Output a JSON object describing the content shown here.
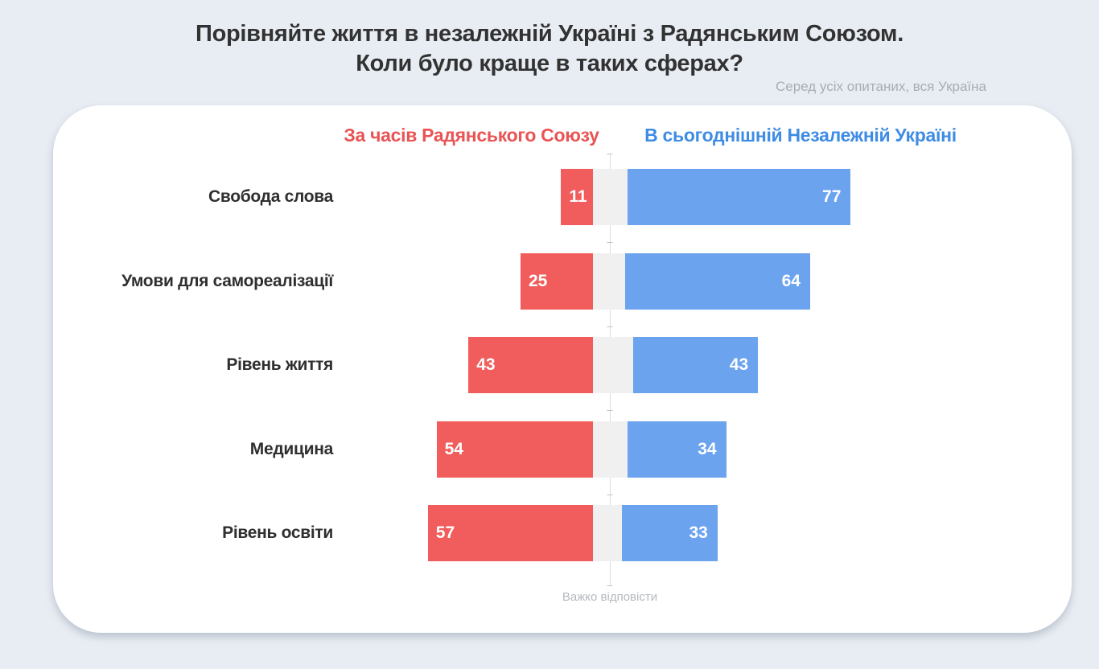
{
  "page": {
    "title_line1": "Порівняйте життя в незалежній Україні з Радянським Союзом.",
    "title_line2": "Коли було краще в таких сферах?",
    "subtitle": "Серед усіх опитаних, вся Україна"
  },
  "legend": {
    "soviet_label": "За часів Радянського Союзу",
    "ukraine_label": "В сьогоднішній Незалежній Україні"
  },
  "axis": {
    "center_label": "Важко відповісти"
  },
  "colors": {
    "soviet_bar": "#f15c5c",
    "ukraine_bar": "#6ba3ee",
    "neutral_gap": "#f0f0f0",
    "soviet_legend_text": "#e95454",
    "ukraine_legend_text": "#3f8ce5"
  },
  "chart_data": {
    "type": "bar",
    "orientation": "horizontal-diverging",
    "title": "Порівняйте життя в незалежній Україні з Радянським Союзом. Коли було краще в таких сферах?",
    "subtitle": "Серед усіх опитаних, вся Україна",
    "categories": [
      "Свобода слова",
      "Умови для самореалізації",
      "Рівень життя",
      "Медицина",
      "Рівень освіти"
    ],
    "series": [
      {
        "name": "За часів Радянського Союзу",
        "color": "#f15c5c",
        "values": [
          11,
          25,
          43,
          54,
          57
        ]
      },
      {
        "name": "В сьогоднішній Незалежній Україні",
        "color": "#6ba3ee",
        "values": [
          77,
          64,
          43,
          34,
          33
        ]
      }
    ],
    "center_gap_series": {
      "name": "Важко відповісти",
      "color": "#f0f0f0",
      "values": [
        12,
        11,
        14,
        12,
        10
      ]
    },
    "xlim": [
      0,
      100
    ],
    "value_labels": true,
    "legend_position": "top",
    "grid": false
  }
}
